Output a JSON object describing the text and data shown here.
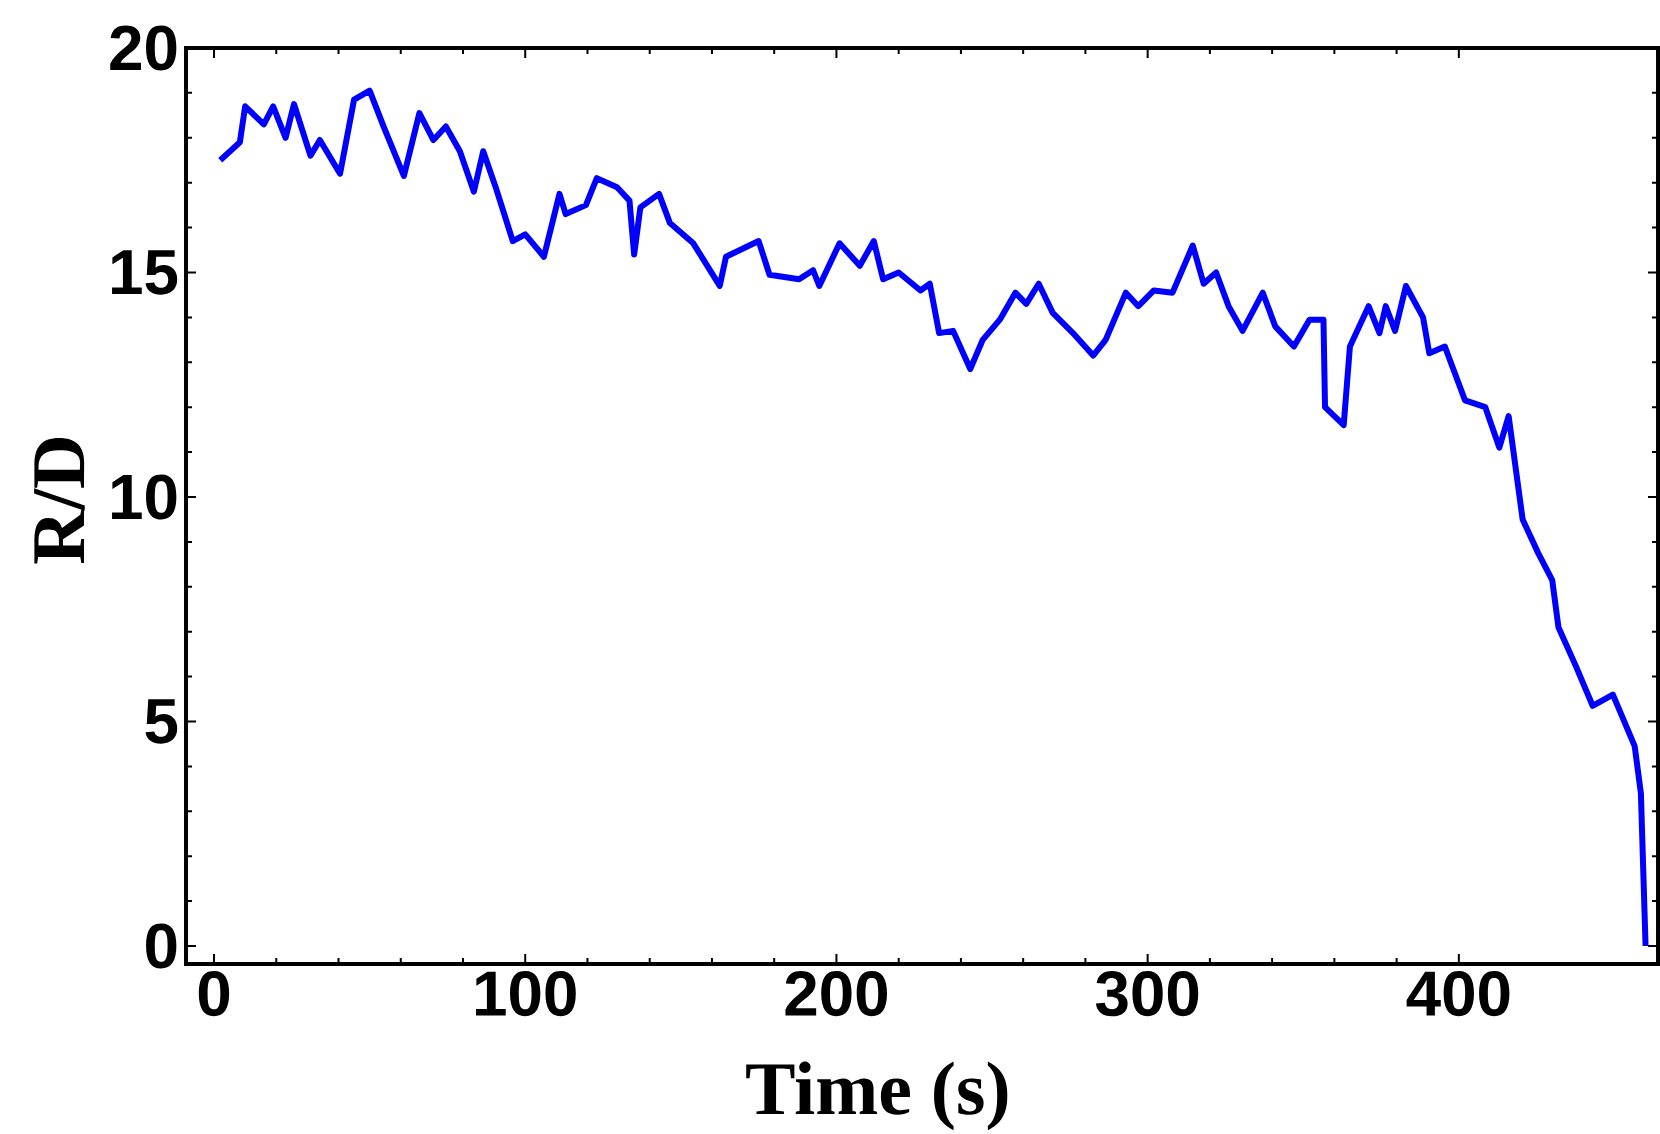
{
  "chart_data": {
    "type": "line",
    "xlabel": "Time (s)",
    "ylabel": "R/D",
    "xlim": [
      -9,
      464
    ],
    "ylim": [
      -0.4,
      20
    ],
    "xticks": [
      0,
      100,
      200,
      300,
      400
    ],
    "yticks": [
      0,
      5,
      10,
      15,
      20
    ],
    "grid": false,
    "marker": "none",
    "line_style": "solid",
    "series": [
      {
        "color": "#0000ff",
        "x": [
          2,
          8.3,
          10,
          16,
          19,
          23,
          25.7,
          31,
          34,
          40.5,
          45,
          50,
          54.5,
          61,
          66,
          70.5,
          74.5,
          79,
          83.5,
          86.5,
          90.5,
          96,
          100,
          106,
          111,
          113,
          119.5,
          123,
          129.5,
          133.5,
          135,
          137,
          143,
          146.5,
          154,
          162.5,
          164.5,
          175,
          178.5,
          188,
          192.5,
          194.5,
          201,
          207.5,
          212,
          215,
          220,
          227,
          230,
          233,
          237.5,
          243,
          247,
          252.5,
          257.5,
          261,
          265,
          269.5,
          276,
          282.5,
          286.5,
          293,
          297,
          302,
          308,
          314.5,
          318,
          322,
          326,
          330.5,
          337,
          341,
          347,
          352,
          356.5,
          357,
          363,
          365,
          371,
          374.5,
          376.5,
          379.5,
          383,
          388.5,
          390.5,
          395.5,
          402,
          408.5,
          413,
          416,
          420.5,
          425.5,
          430,
          432,
          437.5,
          443,
          449.5,
          456.5,
          458.5,
          460
        ],
        "values": [
          17.5,
          17.9,
          18.7,
          18.3,
          18.7,
          18.0,
          18.75,
          17.6,
          17.95,
          17.2,
          18.85,
          19.05,
          18.25,
          17.15,
          18.55,
          17.95,
          18.25,
          17.7,
          16.8,
          17.7,
          16.9,
          15.7,
          15.85,
          15.35,
          16.75,
          16.3,
          16.5,
          17.1,
          16.9,
          16.6,
          15.4,
          16.45,
          16.75,
          16.1,
          15.65,
          14.7,
          15.35,
          15.7,
          14.95,
          14.85,
          15.05,
          14.7,
          15.65,
          15.15,
          15.7,
          14.85,
          15.0,
          14.6,
          14.75,
          13.65,
          13.7,
          12.85,
          13.5,
          13.95,
          14.55,
          14.3,
          14.75,
          14.1,
          13.65,
          13.15,
          13.5,
          14.55,
          14.25,
          14.6,
          14.55,
          15.6,
          14.75,
          15.0,
          14.25,
          13.7,
          14.55,
          13.8,
          13.35,
          13.95,
          13.95,
          12.0,
          11.6,
          13.35,
          14.25,
          13.65,
          14.25,
          13.7,
          14.7,
          14.0,
          13.2,
          13.35,
          12.15,
          12.0,
          11.1,
          11.8,
          9.5,
          8.75,
          8.15,
          7.1,
          6.25,
          5.35,
          5.6,
          4.45,
          3.4,
          0
        ]
      }
    ]
  }
}
